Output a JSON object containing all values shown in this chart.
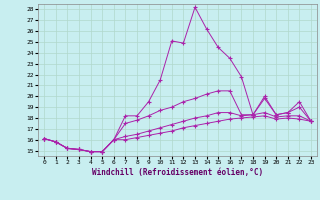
{
  "xlabel": "Windchill (Refroidissement éolien,°C)",
  "background_color": "#c8eef0",
  "grid_color": "#b0d8cc",
  "line_color": "#aa22aa",
  "xlim": [
    -0.5,
    23.5
  ],
  "ylim": [
    14.5,
    28.5
  ],
  "yticks": [
    15,
    16,
    17,
    18,
    19,
    20,
    21,
    22,
    23,
    24,
    25,
    26,
    27,
    28
  ],
  "xticks": [
    0,
    1,
    2,
    3,
    4,
    5,
    6,
    7,
    8,
    9,
    10,
    11,
    12,
    13,
    14,
    15,
    16,
    17,
    18,
    19,
    20,
    21,
    22,
    23
  ],
  "lines": [
    [
      16.1,
      15.8,
      15.2,
      15.1,
      14.9,
      14.9,
      16.0,
      18.2,
      18.2,
      19.5,
      21.5,
      25.1,
      24.9,
      28.2,
      26.2,
      24.5,
      23.5,
      21.8,
      18.3,
      20.0,
      18.3,
      18.5,
      19.5,
      17.7
    ],
    [
      16.1,
      15.8,
      15.2,
      15.1,
      14.9,
      14.9,
      16.0,
      17.5,
      17.8,
      18.2,
      18.7,
      19.0,
      19.5,
      19.8,
      20.2,
      20.5,
      20.5,
      18.3,
      18.3,
      19.8,
      18.3,
      18.5,
      19.0,
      17.7
    ],
    [
      16.1,
      15.8,
      15.2,
      15.1,
      14.9,
      14.9,
      16.0,
      16.3,
      16.5,
      16.8,
      17.1,
      17.4,
      17.7,
      18.0,
      18.2,
      18.5,
      18.5,
      18.2,
      18.3,
      18.5,
      18.1,
      18.2,
      18.2,
      17.7
    ],
    [
      16.1,
      15.8,
      15.2,
      15.1,
      14.9,
      14.9,
      16.0,
      16.0,
      16.2,
      16.4,
      16.6,
      16.8,
      17.1,
      17.3,
      17.5,
      17.7,
      17.9,
      18.0,
      18.1,
      18.2,
      17.9,
      18.0,
      17.9,
      17.7
    ]
  ]
}
